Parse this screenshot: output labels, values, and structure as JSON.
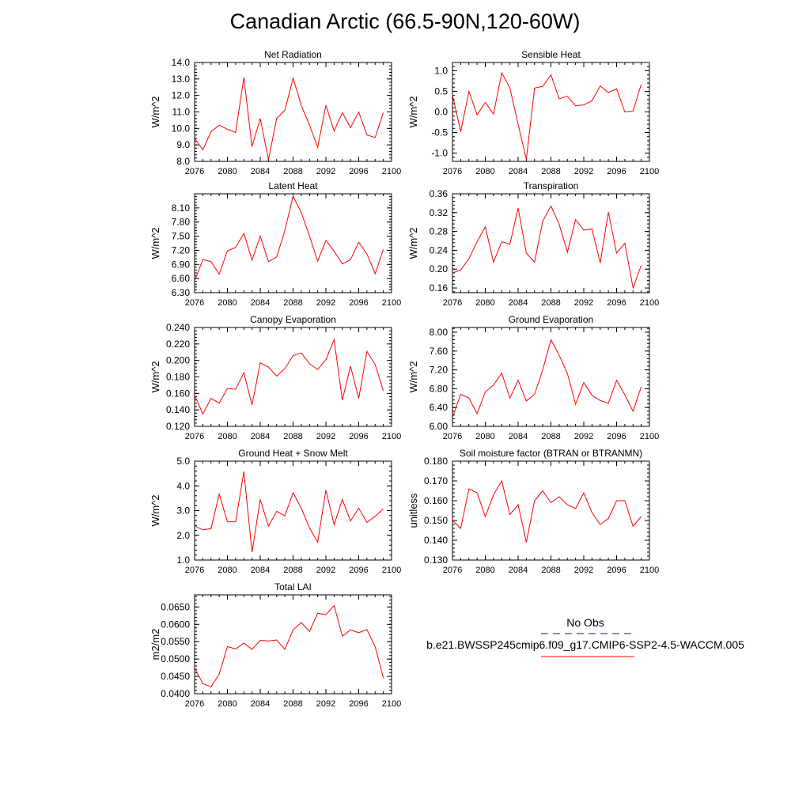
{
  "title": "Canadian Arctic (66.5-90N,120-60W)",
  "colors": {
    "model": "#ff0000",
    "obs": "#1a1a8c",
    "axis": "#000000"
  },
  "legend": {
    "obs_label": "No Obs",
    "model_label": "b.e21.BWSSP245cmip6.f09_g17.CMIP6-SSP2-4.5-WACCM.005"
  },
  "chart_data": [
    {
      "type": "line",
      "title": "Net Radiation",
      "ylabel": "W/m^2",
      "x": [
        2076,
        2077,
        2078,
        2079,
        2080,
        2081,
        2082,
        2083,
        2084,
        2085,
        2086,
        2087,
        2088,
        2089,
        2090,
        2091,
        2092,
        2093,
        2094,
        2095,
        2096,
        2097,
        2098,
        2099
      ],
      "xticks": [
        "2076",
        "2080",
        "2084",
        "2088",
        "2092",
        "2096",
        "2100"
      ],
      "xlim": [
        2076,
        2100
      ],
      "ylim": [
        8.0,
        14.0
      ],
      "yticks": [
        "8.0",
        "9.0",
        "10.0",
        "11.0",
        "12.0",
        "13.0",
        "14.0"
      ],
      "series": [
        {
          "values": [
            9.4,
            8.7,
            9.8,
            10.2,
            9.95,
            9.75,
            13.1,
            8.9,
            10.6,
            8.1,
            10.6,
            11.1,
            13.05,
            11.4,
            10.2,
            8.85,
            11.4,
            9.85,
            10.95,
            10.05,
            11.0,
            9.6,
            9.45,
            10.95
          ]
        }
      ]
    },
    {
      "type": "line",
      "title": "Sensible Heat",
      "ylabel": "W/m^2",
      "x": [
        2076,
        2077,
        2078,
        2079,
        2080,
        2081,
        2082,
        2083,
        2084,
        2085,
        2086,
        2087,
        2088,
        2089,
        2090,
        2091,
        2092,
        2093,
        2094,
        2095,
        2096,
        2097,
        2098,
        2099
      ],
      "xticks": [
        "2076",
        "2080",
        "2084",
        "2088",
        "2092",
        "2096",
        "2100"
      ],
      "xlim": [
        2076,
        2100
      ],
      "ylim": [
        -1.2,
        1.2
      ],
      "yticks": [
        "-1.0",
        "-0.5",
        "0.0",
        "0.5",
        "1.0"
      ],
      "series": [
        {
          "values": [
            0.42,
            -0.48,
            0.5,
            -0.07,
            0.23,
            -0.05,
            0.95,
            0.58,
            -0.3,
            -1.15,
            0.58,
            0.62,
            0.9,
            0.32,
            0.38,
            0.15,
            0.17,
            0.27,
            0.63,
            0.47,
            0.56,
            0.0,
            0.02,
            0.67
          ]
        }
      ]
    },
    {
      "type": "line",
      "title": "Latent Heat",
      "ylabel": "W/m^2",
      "x": [
        2076,
        2077,
        2078,
        2079,
        2080,
        2081,
        2082,
        2083,
        2084,
        2085,
        2086,
        2087,
        2088,
        2089,
        2090,
        2091,
        2092,
        2093,
        2094,
        2095,
        2096,
        2097,
        2098,
        2099
      ],
      "xticks": [
        "2076",
        "2080",
        "2084",
        "2088",
        "2092",
        "2096",
        "2100"
      ],
      "xlim": [
        2076,
        2100
      ],
      "ylim": [
        6.3,
        8.4
      ],
      "yticks": [
        "6.30",
        "6.60",
        "6.90",
        "7.20",
        "7.50",
        "7.80",
        "8.10"
      ],
      "series": [
        {
          "values": [
            6.55,
            7.0,
            6.96,
            6.69,
            7.19,
            7.26,
            7.56,
            6.99,
            7.5,
            6.96,
            7.06,
            7.62,
            8.35,
            8.0,
            7.5,
            6.97,
            7.41,
            7.18,
            6.91,
            7.0,
            7.37,
            7.12,
            6.7,
            7.22
          ]
        }
      ]
    },
    {
      "type": "line",
      "title": "Transpiration",
      "ylabel": "W/m^2",
      "x": [
        2076,
        2077,
        2078,
        2079,
        2080,
        2081,
        2082,
        2083,
        2084,
        2085,
        2086,
        2087,
        2088,
        2089,
        2090,
        2091,
        2092,
        2093,
        2094,
        2095,
        2096,
        2097,
        2098,
        2099
      ],
      "xticks": [
        "2076",
        "2080",
        "2084",
        "2088",
        "2092",
        "2096",
        "2100"
      ],
      "xlim": [
        2076,
        2100
      ],
      "ylim": [
        0.15,
        0.36
      ],
      "yticks": [
        "0.16",
        "0.20",
        "0.24",
        "0.28",
        "0.32",
        "0.36"
      ],
      "series": [
        {
          "values": [
            0.192,
            0.198,
            0.222,
            0.258,
            0.29,
            0.215,
            0.258,
            0.253,
            0.33,
            0.234,
            0.215,
            0.302,
            0.334,
            0.295,
            0.236,
            0.305,
            0.283,
            0.285,
            0.213,
            0.321,
            0.234,
            0.255,
            0.16,
            0.208
          ]
        }
      ]
    },
    {
      "type": "line",
      "title": "Canopy Evaporation",
      "ylabel": "W/m^2",
      "x": [
        2076,
        2077,
        2078,
        2079,
        2080,
        2081,
        2082,
        2083,
        2084,
        2085,
        2086,
        2087,
        2088,
        2089,
        2090,
        2091,
        2092,
        2093,
        2094,
        2095,
        2096,
        2097,
        2098,
        2099
      ],
      "xticks": [
        "2076",
        "2080",
        "2084",
        "2088",
        "2092",
        "2096",
        "2100"
      ],
      "xlim": [
        2076,
        2100
      ],
      "ylim": [
        0.12,
        0.24
      ],
      "yticks": [
        "0.120",
        "0.140",
        "0.160",
        "0.180",
        "0.200",
        "0.220",
        "0.240"
      ],
      "series": [
        {
          "values": [
            0.158,
            0.135,
            0.154,
            0.148,
            0.166,
            0.165,
            0.185,
            0.146,
            0.197,
            0.192,
            0.181,
            0.19,
            0.206,
            0.209,
            0.196,
            0.189,
            0.201,
            0.225,
            0.152,
            0.193,
            0.154,
            0.211,
            0.195,
            0.163
          ]
        }
      ]
    },
    {
      "type": "line",
      "title": "Ground Evaporation",
      "ylabel": "W/m^2",
      "x": [
        2076,
        2077,
        2078,
        2079,
        2080,
        2081,
        2082,
        2083,
        2084,
        2085,
        2086,
        2087,
        2088,
        2089,
        2090,
        2091,
        2092,
        2093,
        2094,
        2095,
        2096,
        2097,
        2098,
        2099
      ],
      "xticks": [
        "2076",
        "2080",
        "2084",
        "2088",
        "2092",
        "2096",
        "2100"
      ],
      "xlim": [
        2076,
        2100
      ],
      "ylim": [
        6.0,
        8.1
      ],
      "yticks": [
        "6.00",
        "6.40",
        "6.80",
        "7.20",
        "7.60",
        "8.00"
      ],
      "series": [
        {
          "values": [
            6.19,
            6.68,
            6.6,
            6.27,
            6.73,
            6.88,
            7.13,
            6.6,
            6.98,
            6.54,
            6.68,
            7.2,
            7.84,
            7.51,
            7.12,
            6.47,
            6.93,
            6.66,
            6.55,
            6.49,
            6.98,
            6.67,
            6.32,
            6.84
          ]
        }
      ]
    },
    {
      "type": "line",
      "title": "Ground Heat + Snow Melt",
      "ylabel": "W/m^2",
      "x": [
        2076,
        2077,
        2078,
        2079,
        2080,
        2081,
        2082,
        2083,
        2084,
        2085,
        2086,
        2087,
        2088,
        2089,
        2090,
        2091,
        2092,
        2093,
        2094,
        2095,
        2096,
        2097,
        2098,
        2099
      ],
      "xticks": [
        "2076",
        "2080",
        "2084",
        "2088",
        "2092",
        "2096",
        "2100"
      ],
      "xlim": [
        2076,
        2100
      ],
      "ylim": [
        1.0,
        5.0
      ],
      "yticks": [
        "1.0",
        "2.0",
        "3.0",
        "4.0",
        "5.0"
      ],
      "series": [
        {
          "values": [
            2.38,
            2.22,
            2.27,
            3.67,
            2.55,
            2.55,
            4.58,
            1.32,
            3.45,
            2.37,
            2.97,
            2.79,
            3.72,
            3.1,
            2.3,
            1.72,
            3.83,
            2.43,
            3.45,
            2.58,
            3.1,
            2.52,
            2.77,
            3.07
          ]
        }
      ]
    },
    {
      "type": "line",
      "title": "Soil moisture factor (BTRAN or BTRANMN)",
      "ylabel": "unitless",
      "x": [
        2076,
        2077,
        2078,
        2079,
        2080,
        2081,
        2082,
        2083,
        2084,
        2085,
        2086,
        2087,
        2088,
        2089,
        2090,
        2091,
        2092,
        2093,
        2094,
        2095,
        2096,
        2097,
        2098,
        2099
      ],
      "xticks": [
        "2076",
        "2080",
        "2084",
        "2088",
        "2092",
        "2096",
        "2100"
      ],
      "xlim": [
        2076,
        2100
      ],
      "ylim": [
        0.13,
        0.18
      ],
      "yticks": [
        "0.130",
        "0.140",
        "0.150",
        "0.160",
        "0.170",
        "0.180"
      ],
      "series": [
        {
          "values": [
            0.15,
            0.146,
            0.166,
            0.164,
            0.152,
            0.163,
            0.17,
            0.153,
            0.158,
            0.139,
            0.16,
            0.165,
            0.159,
            0.162,
            0.158,
            0.156,
            0.164,
            0.154,
            0.148,
            0.151,
            0.16,
            0.16,
            0.147,
            0.152
          ]
        }
      ]
    },
    {
      "type": "line",
      "title": "Total LAI",
      "ylabel": "m2/m2",
      "x": [
        2076,
        2077,
        2078,
        2079,
        2080,
        2081,
        2082,
        2083,
        2084,
        2085,
        2086,
        2087,
        2088,
        2089,
        2090,
        2091,
        2092,
        2093,
        2094,
        2095,
        2096,
        2097,
        2098,
        2099
      ],
      "xticks": [
        "2076",
        "2080",
        "2084",
        "2088",
        "2092",
        "2096",
        "2100"
      ],
      "xlim": [
        2076,
        2100
      ],
      "ylim": [
        0.04,
        0.0685
      ],
      "yticks": [
        "0.0400",
        "0.0450",
        "0.0500",
        "0.0550",
        "0.0600",
        "0.0650"
      ],
      "series": [
        {
          "values": [
            0.0475,
            0.0429,
            0.042,
            0.0456,
            0.0536,
            0.0529,
            0.0546,
            0.0528,
            0.0554,
            0.0552,
            0.0555,
            0.0528,
            0.0584,
            0.0605,
            0.0579,
            0.0632,
            0.0628,
            0.0654,
            0.0566,
            0.0584,
            0.0576,
            0.0585,
            0.0535,
            0.0446
          ]
        }
      ]
    }
  ]
}
